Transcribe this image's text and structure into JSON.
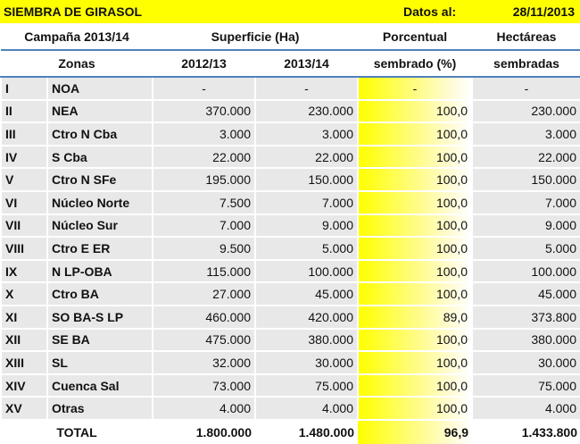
{
  "header": {
    "title": "SIEMBRA DE GIRASOL",
    "date_label": "Datos al:",
    "date": "28/11/2013"
  },
  "table": {
    "group_headers": [
      "Campaña 2013/14",
      "Superficie (Ha)",
      "Porcentual",
      "Hectáreas"
    ],
    "columns": [
      "Zonas",
      "2012/13",
      "2013/14",
      "sembrado (%)",
      "sembradas"
    ],
    "rows": [
      [
        "I",
        "NOA",
        "-",
        "-",
        "-",
        "-"
      ],
      [
        "II",
        "NEA",
        "370.000",
        "230.000",
        "100,0",
        "230.000"
      ],
      [
        "III",
        "Ctro N Cba",
        "3.000",
        "3.000",
        "100,0",
        "3.000"
      ],
      [
        "IV",
        "S Cba",
        "22.000",
        "22.000",
        "100,0",
        "22.000"
      ],
      [
        "V",
        "Ctro N SFe",
        "195.000",
        "150.000",
        "100,0",
        "150.000"
      ],
      [
        "VI",
        "Núcleo Norte",
        "7.500",
        "7.000",
        "100,0",
        "7.000"
      ],
      [
        "VII",
        "Núcleo Sur",
        "7.000",
        "9.000",
        "100,0",
        "9.000"
      ],
      [
        "VIII",
        "Ctro E ER",
        "9.500",
        "5.000",
        "100,0",
        "5.000"
      ],
      [
        "IX",
        "N LP-OBA",
        "115.000",
        "100.000",
        "100,0",
        "100.000"
      ],
      [
        "X",
        "Ctro BA",
        "27.000",
        "45.000",
        "100,0",
        "45.000"
      ],
      [
        "XI",
        "SO BA-S LP",
        "460.000",
        "420.000",
        "89,0",
        "373.800"
      ],
      [
        "XII",
        "SE BA",
        "475.000",
        "380.000",
        "100,0",
        "380.000"
      ],
      [
        "XIII",
        "SL",
        "32.000",
        "30.000",
        "100,0",
        "30.000"
      ],
      [
        "XIV",
        "Cuenca Sal",
        "73.000",
        "75.000",
        "100,0",
        "75.000"
      ],
      [
        "XV",
        "Otras",
        "4.000",
        "4.000",
        "100,0",
        "4.000"
      ]
    ],
    "total": [
      "TOTAL",
      "1.800.000",
      "1.480.000",
      "96,9",
      "1.433.800"
    ]
  }
}
